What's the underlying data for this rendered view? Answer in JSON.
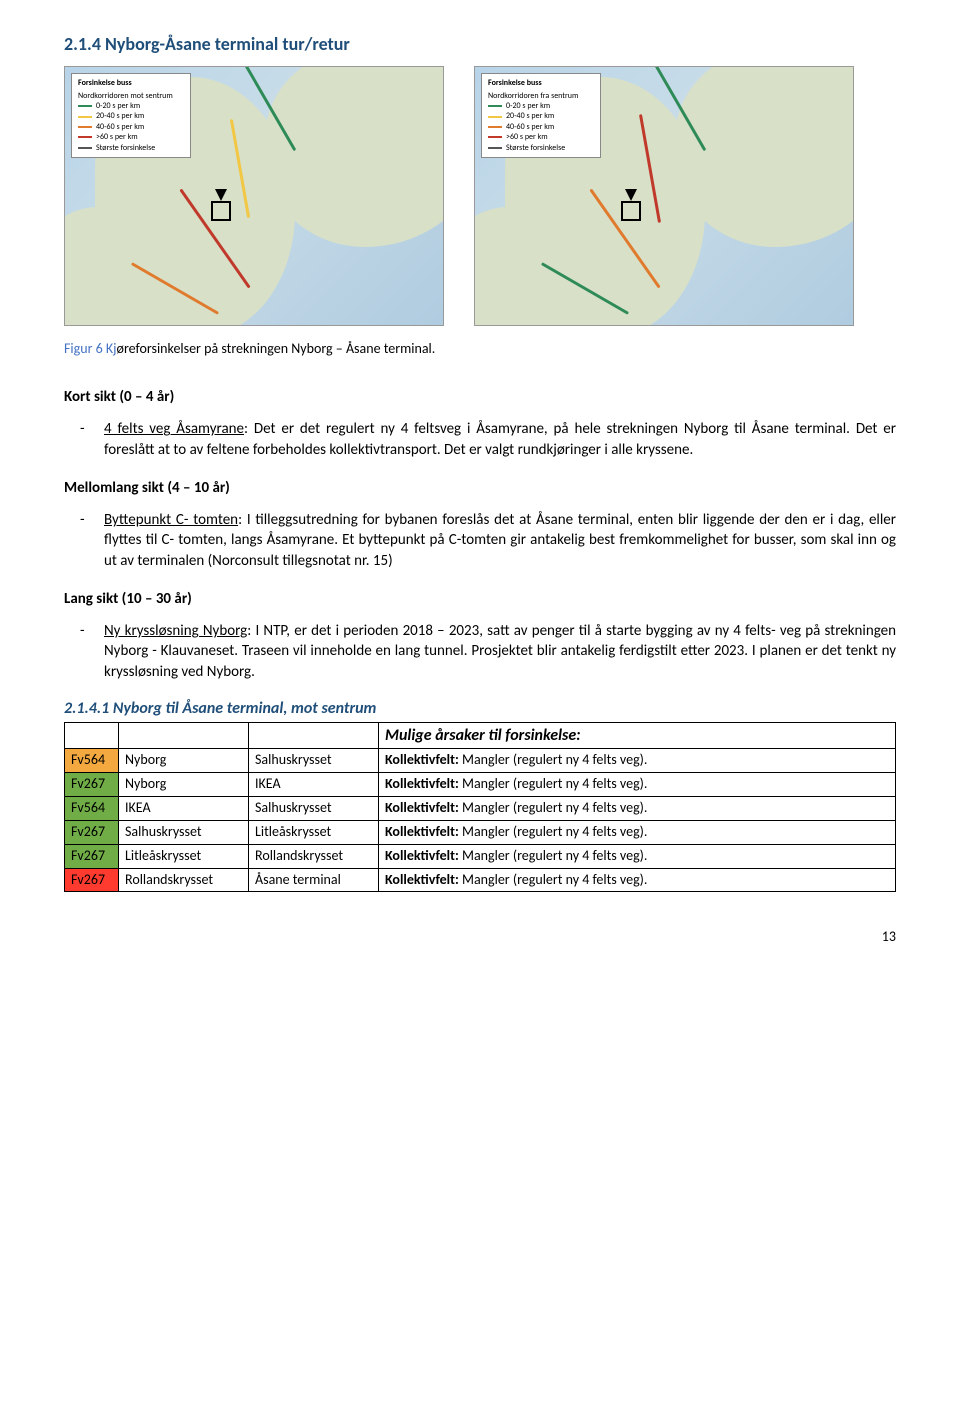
{
  "heading": "2.1.4 Nyborg-Åsane terminal tur/retur",
  "maps": {
    "legend_title_left": "Forsinkelse buss",
    "legend_sub_left": "Nordkorridoren mot sentrum",
    "legend_title_right": "Forsinkelse buss",
    "legend_sub_right": "Nordkorridoren fra sentrum",
    "legend_items": [
      {
        "label": "0-20 s per km",
        "color": "#2e8b57"
      },
      {
        "label": "20-40 s per km",
        "color": "#f2c744"
      },
      {
        "label": "40-60 s per km",
        "color": "#e07b2e"
      },
      {
        "label": ">60 s per km",
        "color": "#c0392b"
      },
      {
        "label": "Største forsinkelse",
        "color": "#555555"
      }
    ]
  },
  "caption_prefix": "Figur 6 Kj",
  "caption_rest": "øreforsinkelser på strekningen Nyborg – Åsane terminal.",
  "kort_label": "Kort sikt (0 – 4 år)",
  "kort_item_lead": "4 felts veg Åsamyrane",
  "kort_item_rest": ": Det er det regulert ny 4 feltsveg i Åsamyrane, på hele strekningen Nyborg til Åsane terminal. Det er foreslått at to av feltene forbeholdes kollektivtransport. Det er valgt rundkjøringer i alle kryssene.",
  "mellom_label": "Mellomlang sikt (4 – 10 år)",
  "mellom_item_lead": "Byttepunkt C- tomten",
  "mellom_item_rest": ": I tilleggsutredning for bybanen foreslås det at Åsane terminal, enten blir liggende der den er i dag, eller flyttes til C- tomten, langs Åsamyrane. Et byttepunkt på C-tomten gir antakelig best fremkommelighet for busser, som skal inn og ut av terminalen (Norconsult tillegsnotat nr. 15)",
  "lang_label": "Lang sikt (10 – 30 år)",
  "lang_item_lead": "Ny kryssløsning Nyborg",
  "lang_item_rest": ": I NTP, er det i perioden 2018 – 2023, satt av penger til å starte bygging av ny 4 felts- veg på strekningen Nyborg - Klauvaneset. Traseen vil inneholde en lang tunnel. Prosjektet blir antakelig ferdigstilt etter 2023. I planen er det tenkt ny kryssløsning ved Nyborg.",
  "sub_heading": "2.1.4.1 Nyborg til Åsane terminal, mot sentrum",
  "table": {
    "cause_header": "Mulige årsaker til forsinkelse:",
    "rows": [
      {
        "code": "Fv564",
        "bg": "bg-orange",
        "from": "Nyborg",
        "to": "Salhuskrysset",
        "cause_b": "Kollektivfelt:",
        "cause_rest": " Mangler (regulert ny 4 felts veg)."
      },
      {
        "code": "Fv267",
        "bg": "bg-green",
        "from": "Nyborg",
        "to": "IKEA",
        "cause_b": "Kollektivfelt:",
        "cause_rest": " Mangler (regulert ny 4 felts veg)."
      },
      {
        "code": "Fv564",
        "bg": "bg-green",
        "from": "IKEA",
        "to": "Salhuskrysset",
        "cause_b": "Kollektivfelt:",
        "cause_rest": " Mangler (regulert ny 4 felts veg)."
      },
      {
        "code": "Fv267",
        "bg": "bg-green",
        "from": "Salhuskrysset",
        "to": "Litleåskrysset",
        "cause_b": "Kollektivfelt:",
        "cause_rest": " Mangler (regulert ny 4 felts veg)."
      },
      {
        "code": "Fv267",
        "bg": "bg-green",
        "from": "Litleåskrysset",
        "to": "Rollandskrysset",
        "cause_b": "Kollektivfelt:",
        "cause_rest": " Mangler (regulert ny 4 felts veg)."
      },
      {
        "code": "Fv267",
        "bg": "bg-red",
        "from": "Rollandskrysset",
        "to": "Åsane terminal",
        "cause_b": "Kollektivfelt:",
        "cause_rest": " Mangler (regulert ny 4 felts veg)."
      }
    ]
  },
  "page_number": "13"
}
